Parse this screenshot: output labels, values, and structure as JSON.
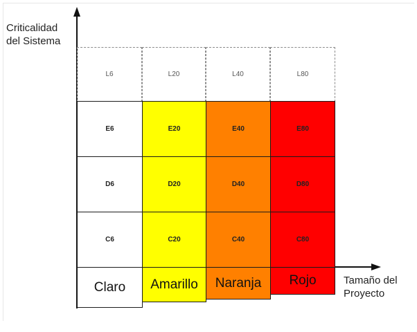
{
  "y_axis": {
    "line1": "Criticalidad",
    "line2": "del Sistema"
  },
  "x_axis": {
    "line1": "Tamaño del",
    "line2": "Proyecto"
  },
  "rows": [
    {
      "id": "L",
      "cells": [
        "L6",
        "L20",
        "L40",
        "L80"
      ]
    },
    {
      "id": "E",
      "cells": [
        "E6",
        "E20",
        "E40",
        "E80"
      ]
    },
    {
      "id": "D",
      "cells": [
        "D6",
        "D20",
        "D40",
        "D80"
      ]
    },
    {
      "id": "C",
      "cells": [
        "C6",
        "C20",
        "C40",
        "C80"
      ]
    }
  ],
  "categories": [
    {
      "label": "Claro",
      "color": "#ffffff"
    },
    {
      "label": "Amarillo",
      "color": "#ffff00"
    },
    {
      "label": "Naranja",
      "color": "#ff8000"
    },
    {
      "label": "Rojo",
      "color": "#ff0000"
    }
  ]
}
